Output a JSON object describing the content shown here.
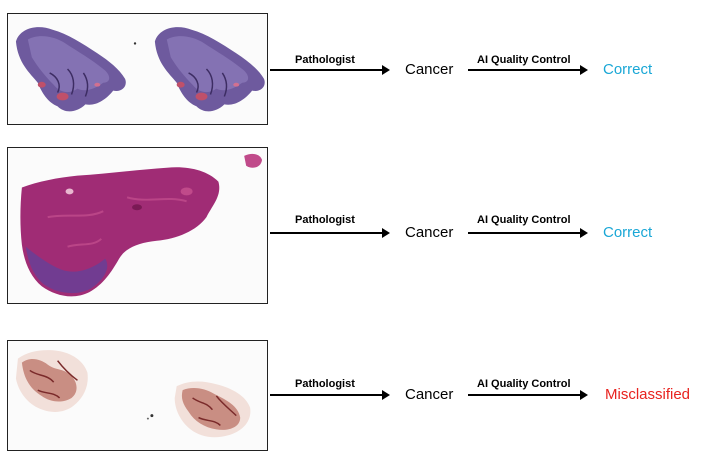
{
  "rows": [
    {
      "slide": "Histology whole-slide image: two adjacent tissue sections",
      "arrow1_label": "Pathologist",
      "diagnosis": "Cancer",
      "arrow2_label": "AI Quality Control",
      "result": "Correct",
      "result_color": "#1aa7d6"
    },
    {
      "slide": "Histology whole-slide image: large single tissue section",
      "arrow1_label": "Pathologist",
      "diagnosis": "Cancer",
      "arrow2_label": "AI Quality Control",
      "result": "Correct",
      "result_color": "#1aa7d6"
    },
    {
      "slide": "Histology whole-slide image: sparse fragmented tissue",
      "arrow1_label": "Pathologist",
      "diagnosis": "Cancer",
      "arrow2_label": "AI Quality Control",
      "result": "Misclassified",
      "result_color": "#e8231f"
    }
  ]
}
